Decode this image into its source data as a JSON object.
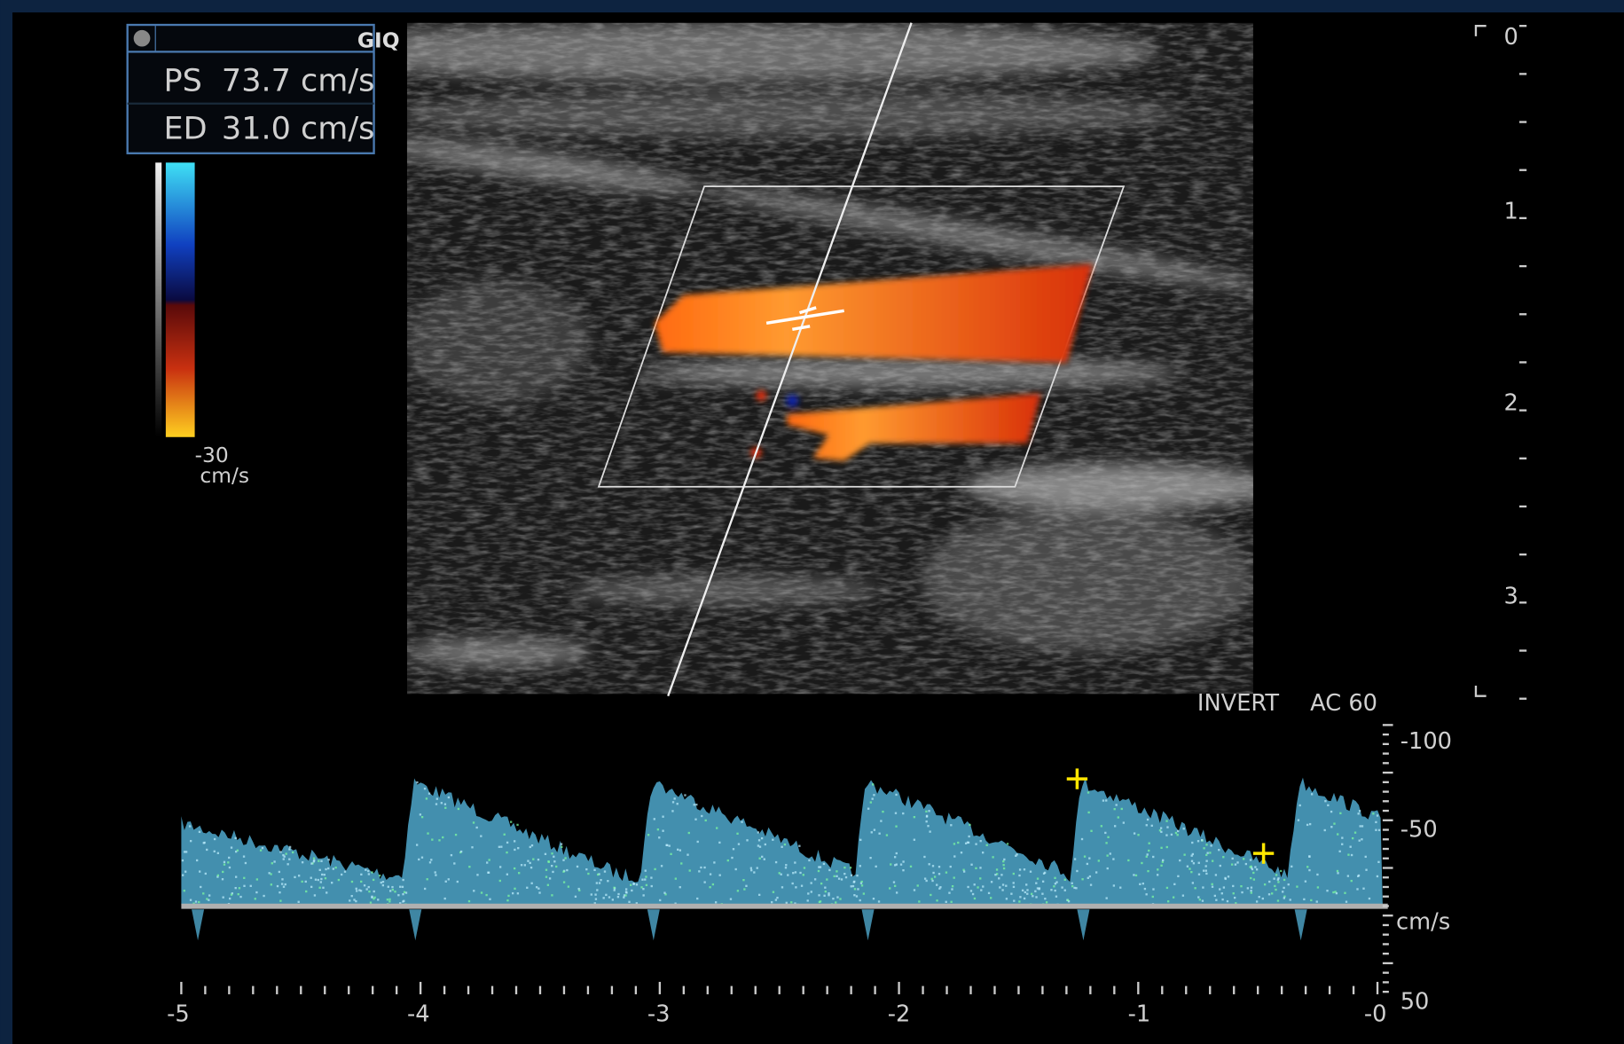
{
  "logo": "GIQ",
  "measurements": [
    {
      "label": "PS",
      "value": "73.7 cm/s"
    },
    {
      "label": "ED",
      "value": "31.0 cm/s"
    }
  ],
  "color_bar": {
    "bottom_label": "-30",
    "unit": "cm/s"
  },
  "depth_scale": [
    "0",
    "1",
    "2",
    "3"
  ],
  "doppler": {
    "settings": [
      "INVERT",
      "AC 60"
    ],
    "velocity_labels": [
      "-100",
      "-50",
      "cm/s",
      "50"
    ],
    "time_labels": [
      "-5",
      "-4",
      "-3",
      "-2",
      "-1",
      "-0"
    ]
  }
}
